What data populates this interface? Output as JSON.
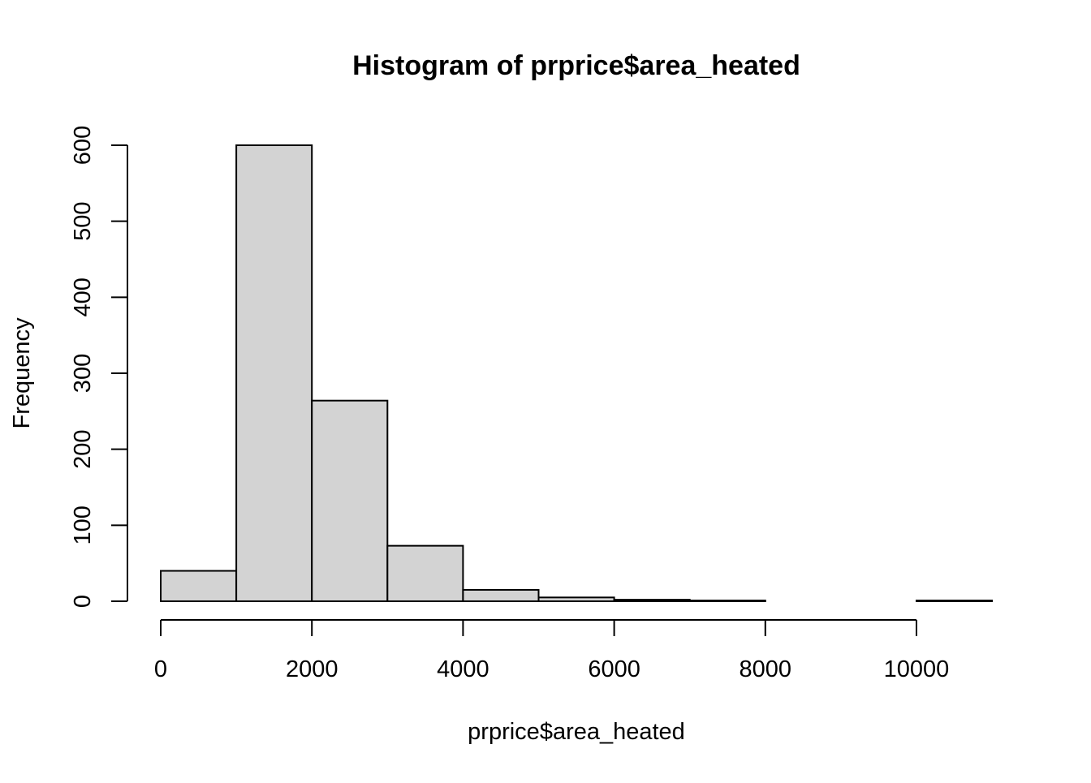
{
  "chart_data": {
    "type": "bar",
    "title": "Histogram of prprice$area_heated",
    "xlabel": "prprice$area_heated",
    "ylabel": "Frequency",
    "bins": [
      {
        "start": 0,
        "end": 1000,
        "count": 40
      },
      {
        "start": 1000,
        "end": 2000,
        "count": 600
      },
      {
        "start": 2000,
        "end": 3000,
        "count": 264
      },
      {
        "start": 3000,
        "end": 4000,
        "count": 73
      },
      {
        "start": 4000,
        "end": 5000,
        "count": 15
      },
      {
        "start": 5000,
        "end": 6000,
        "count": 5
      },
      {
        "start": 6000,
        "end": 7000,
        "count": 2
      },
      {
        "start": 7000,
        "end": 8000,
        "count": 1
      },
      {
        "start": 8000,
        "end": 9000,
        "count": 0
      },
      {
        "start": 9000,
        "end": 10000,
        "count": 0
      },
      {
        "start": 10000,
        "end": 11000,
        "count": 1
      }
    ],
    "xticks": [
      0,
      2000,
      4000,
      6000,
      8000,
      10000
    ],
    "yticks": [
      0,
      100,
      200,
      300,
      400,
      500,
      600
    ],
    "xlim": [
      0,
      11000
    ],
    "ylim": [
      0,
      600
    ],
    "bar_fill": "#d3d3d3",
    "bar_stroke": "#000000",
    "grid": false,
    "legend": "none"
  }
}
